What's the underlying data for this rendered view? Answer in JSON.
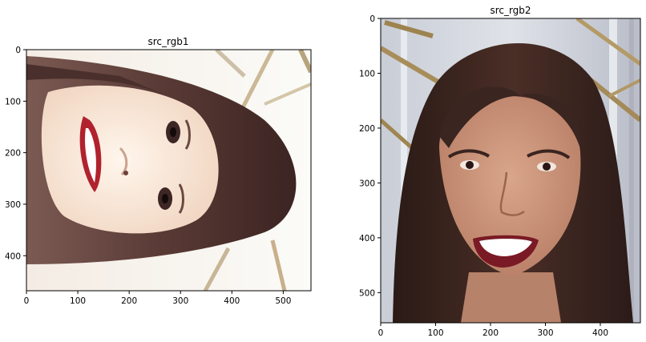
{
  "chart_data": [
    {
      "type": "image",
      "title": "src_rgb1",
      "xlim": [
        0,
        554
      ],
      "ylim": [
        0,
        468
      ],
      "xticks": [
        0,
        100,
        200,
        300,
        400,
        500
      ],
      "yticks": [
        0,
        100,
        200,
        300,
        400
      ],
      "content": "portrait photo rotated 90 degrees, overexposed"
    },
    {
      "type": "image",
      "title": "src_rgb2",
      "xlim": [
        0,
        473
      ],
      "ylim": [
        0,
        555
      ],
      "xticks": [
        0,
        100,
        200,
        300,
        400
      ],
      "yticks": [
        0,
        100,
        200,
        300,
        400,
        500
      ],
      "content": "portrait photo upright"
    }
  ]
}
